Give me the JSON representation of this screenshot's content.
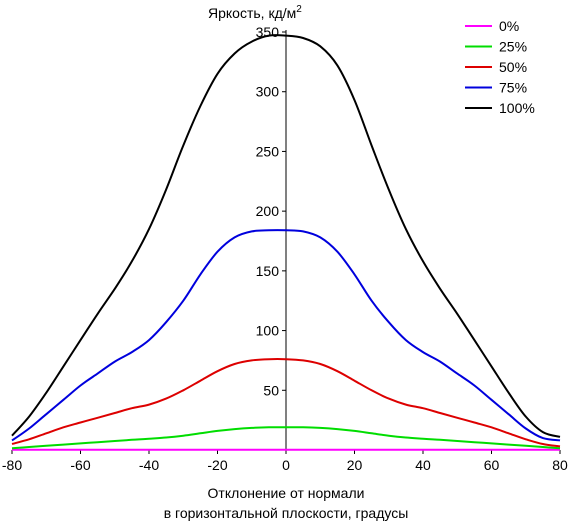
{
  "chart_data": {
    "type": "line",
    "ylabel": "Яркость, кд/м",
    "ylabel_sup": "2",
    "xlabel_line1": "Отклонение от нормали",
    "xlabel_line2": "в горизонтальной плоскости, градусы",
    "xlim": [
      -80,
      80
    ],
    "ylim": [
      0,
      350
    ],
    "xticks": [
      -80,
      -60,
      -40,
      -20,
      0,
      20,
      40,
      60,
      80
    ],
    "yticks": [
      50,
      100,
      150,
      200,
      250,
      300,
      350
    ],
    "grid": false,
    "legend_position": "top-right",
    "x": [
      -80,
      -75,
      -70,
      -65,
      -60,
      -55,
      -50,
      -45,
      -40,
      -35,
      -30,
      -25,
      -20,
      -15,
      -10,
      -5,
      0,
      5,
      10,
      15,
      20,
      25,
      30,
      35,
      40,
      45,
      50,
      55,
      60,
      65,
      70,
      75,
      80
    ],
    "series": [
      {
        "name": "0%",
        "color": "#ff00ff",
        "values": [
          0.2,
          0.2,
          0.2,
          0.2,
          0.2,
          0.2,
          0.2,
          0.2,
          0.2,
          0.2,
          0.2,
          0.2,
          0.2,
          0.2,
          0.2,
          0.2,
          0.2,
          0.2,
          0.2,
          0.2,
          0.2,
          0.2,
          0.2,
          0.2,
          0.2,
          0.2,
          0.2,
          0.2,
          0.2,
          0.2,
          0.2,
          0.2,
          0.2
        ]
      },
      {
        "name": "25%",
        "color": "#00dd00",
        "values": [
          1.5,
          2.5,
          3.5,
          4.5,
          5.5,
          6.5,
          7.5,
          8.5,
          9.5,
          10.5,
          12,
          14,
          16,
          17.5,
          18.5,
          19,
          19,
          19,
          18.5,
          17.5,
          16,
          14,
          12,
          10.5,
          9.5,
          8.5,
          7.5,
          6.5,
          5.5,
          4.5,
          3.5,
          2.5,
          1.5
        ]
      },
      {
        "name": "50%",
        "color": "#dd0000",
        "values": [
          5,
          9,
          14,
          19,
          23,
          27,
          31,
          35,
          38,
          43,
          50,
          58,
          66,
          72,
          75,
          76,
          76,
          75,
          72,
          66,
          58,
          50,
          43,
          38,
          35,
          31,
          27,
          23,
          19,
          14,
          9,
          5,
          3
        ]
      },
      {
        "name": "75%",
        "color": "#0000dd",
        "values": [
          8,
          18,
          30,
          42,
          54,
          64,
          74,
          82,
          92,
          107,
          125,
          147,
          166,
          178,
          183,
          184,
          184,
          183,
          178,
          166,
          147,
          125,
          107,
          92,
          82,
          74,
          64,
          54,
          42,
          30,
          18,
          10,
          8
        ]
      },
      {
        "name": "100%",
        "color": "#000000",
        "values": [
          12,
          28,
          48,
          70,
          92,
          114,
          135,
          158,
          185,
          218,
          255,
          288,
          315,
          332,
          342,
          347,
          347,
          345,
          338,
          322,
          293,
          255,
          218,
          185,
          158,
          135,
          114,
          92,
          70,
          48,
          28,
          15,
          11
        ]
      }
    ]
  }
}
